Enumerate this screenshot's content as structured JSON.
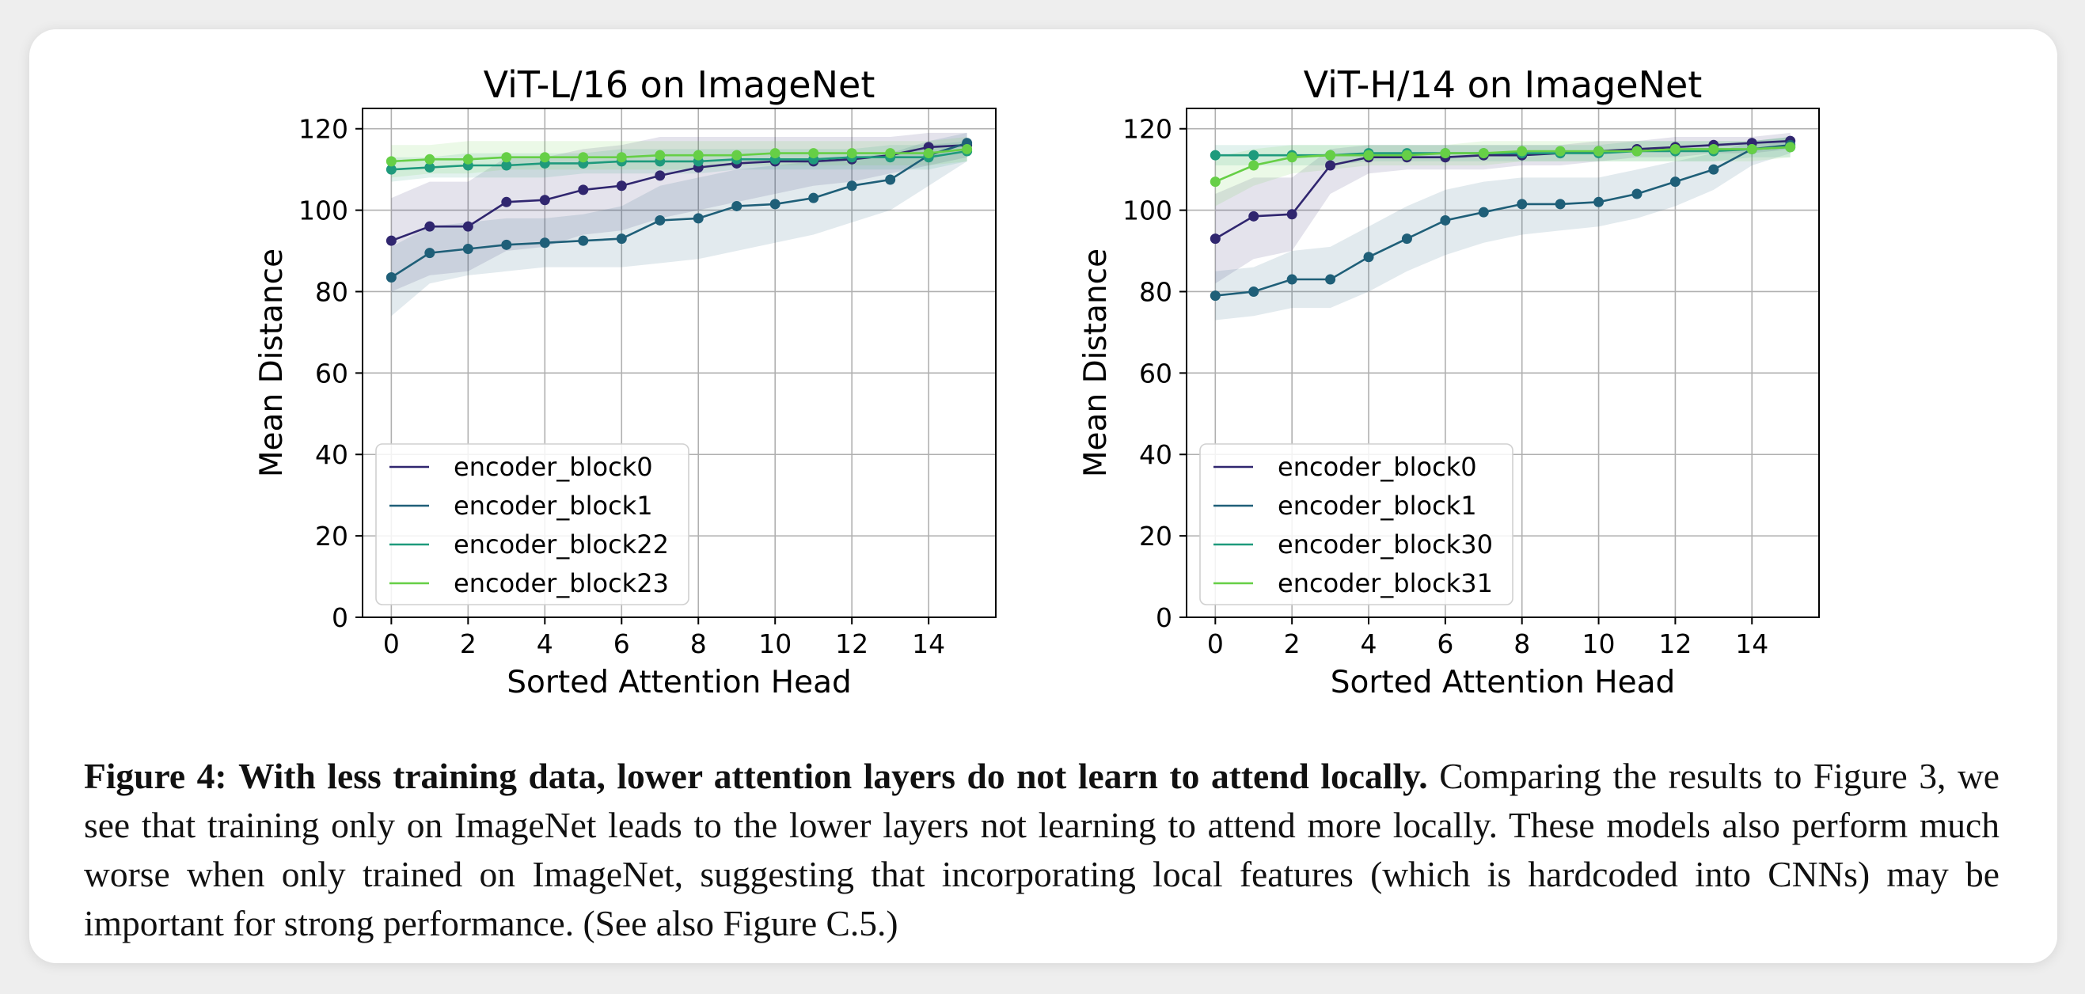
{
  "colors": {
    "series": [
      "#30266f",
      "#1f5f78",
      "#1e9a7c",
      "#66cf46"
    ]
  },
  "caption": {
    "label": "Figure 4:",
    "bold": "With less training data, lower attention layers do not learn to attend locally.",
    "body": "Comparing the results to Figure 3, we see that training only on ImageNet leads to the lower layers not learning to attend more locally. These models also perform much worse when only trained on ImageNet, suggesting that incorporating local features (which is hardcoded into CNNs) may be important for strong performance. (See also Figure C.5.)"
  },
  "chart_data": [
    {
      "type": "line",
      "title": "ViT-L/16 on ImageNet",
      "xlabel": "Sorted Attention Head",
      "ylabel": "Mean Distance",
      "xlim": [
        -0.75,
        15.75
      ],
      "ylim": [
        0,
        125
      ],
      "xticks": [
        0,
        2,
        4,
        6,
        8,
        10,
        12,
        14
      ],
      "yticks": [
        0,
        20,
        40,
        60,
        80,
        100,
        120
      ],
      "grid": true,
      "legend": "lower-left",
      "x": [
        0,
        1,
        2,
        3,
        4,
        5,
        6,
        7,
        8,
        9,
        10,
        11,
        12,
        13,
        14,
        15
      ],
      "series": [
        {
          "name": "encoder_block0",
          "values": [
            92.5,
            96,
            96,
            102,
            102.5,
            105,
            106,
            108.5,
            110.5,
            111.5,
            112,
            112,
            112.5,
            113.5,
            115.5,
            116
          ],
          "lower": [
            80,
            84,
            85,
            90,
            91,
            94,
            95,
            98,
            100,
            102,
            104,
            106,
            107,
            109,
            111,
            113
          ],
          "upper": [
            103,
            107,
            107,
            113,
            113,
            115,
            116,
            118,
            118,
            118,
            118,
            118,
            118,
            118,
            119,
            119
          ]
        },
        {
          "name": "encoder_block1",
          "values": [
            83.5,
            89.5,
            90.5,
            91.5,
            92,
            92.5,
            93,
            97.5,
            98,
            101,
            101.5,
            103,
            106,
            107.5,
            113.5,
            116.5
          ],
          "lower": [
            74,
            82,
            84,
            85,
            86,
            86,
            86,
            87,
            88,
            90,
            92,
            94,
            97,
            100,
            106,
            112
          ],
          "upper": [
            91,
            96,
            97,
            98,
            98,
            99,
            101,
            106,
            108,
            110,
            111,
            112,
            113,
            114,
            117,
            119
          ]
        },
        {
          "name": "encoder_block22",
          "values": [
            110,
            110.5,
            111,
            111,
            111.5,
            111.5,
            112,
            112,
            112,
            112.5,
            112.5,
            112.5,
            113,
            113,
            113,
            114.5
          ],
          "lower": [
            107,
            108,
            108,
            108,
            108,
            109,
            109,
            109,
            109,
            110,
            110,
            110,
            110,
            110,
            110,
            112
          ],
          "upper": [
            113,
            113,
            114,
            114,
            114,
            114,
            115,
            115,
            115,
            115,
            115,
            115,
            115,
            116,
            116,
            117
          ]
        },
        {
          "name": "encoder_block23",
          "values": [
            112,
            112.5,
            112.5,
            113,
            113,
            113,
            113,
            113.5,
            113.5,
            113.5,
            114,
            114,
            114,
            114,
            114,
            115
          ],
          "lower": [
            108,
            109,
            109,
            110,
            110,
            110,
            110,
            110,
            110,
            111,
            111,
            111,
            111,
            111,
            111,
            112
          ],
          "upper": [
            116,
            116,
            117,
            117,
            117,
            117,
            117,
            117,
            117,
            117,
            117,
            117,
            117,
            117,
            117,
            118
          ]
        }
      ]
    },
    {
      "type": "line",
      "title": "ViT-H/14 on ImageNet",
      "xlabel": "Sorted Attention Head",
      "ylabel": "Mean Distance",
      "xlim": [
        -0.75,
        15.75
      ],
      "ylim": [
        0,
        125
      ],
      "xticks": [
        0,
        2,
        4,
        6,
        8,
        10,
        12,
        14
      ],
      "yticks": [
        0,
        20,
        40,
        60,
        80,
        100,
        120
      ],
      "grid": true,
      "legend": "lower-left",
      "x": [
        0,
        1,
        2,
        3,
        4,
        5,
        6,
        7,
        8,
        9,
        10,
        11,
        12,
        13,
        14,
        15
      ],
      "series": [
        {
          "name": "encoder_block0",
          "values": [
            93,
            98.5,
            99,
            111,
            113,
            113,
            113,
            113.5,
            113.5,
            114,
            114.5,
            115,
            115.5,
            116,
            116.5,
            117
          ],
          "lower": [
            82,
            88,
            90,
            104,
            109,
            110,
            110,
            110,
            111,
            111,
            112,
            113,
            113,
            114,
            114,
            115
          ],
          "upper": [
            104,
            108,
            108,
            115,
            116,
            116,
            116,
            116,
            116,
            116,
            117,
            117,
            118,
            118,
            118,
            119
          ]
        },
        {
          "name": "encoder_block1",
          "values": [
            79,
            80,
            83,
            83,
            88.5,
            93,
            97.5,
            99.5,
            101.5,
            101.5,
            102,
            104,
            107,
            110,
            115,
            116
          ],
          "lower": [
            73,
            74,
            76,
            76,
            80,
            85,
            89,
            92,
            94,
            95,
            96,
            98,
            101,
            105,
            111,
            114
          ],
          "upper": [
            85,
            86,
            90,
            91,
            96,
            101,
            105,
            107,
            108,
            108,
            108,
            110,
            112,
            114,
            117,
            118
          ]
        },
        {
          "name": "encoder_block30",
          "values": [
            113.5,
            113.5,
            113.5,
            113.5,
            114,
            114,
            114,
            114,
            114,
            114,
            114,
            114.5,
            114.5,
            114.5,
            115,
            115.5
          ],
          "lower": [
            111,
            111,
            111,
            111,
            112,
            112,
            112,
            112,
            112,
            112,
            112,
            112,
            112,
            112,
            113,
            113
          ],
          "upper": [
            116,
            116,
            116,
            116,
            116,
            116,
            116,
            116,
            116,
            116,
            116,
            117,
            117,
            117,
            117,
            118
          ]
        },
        {
          "name": "encoder_block31",
          "values": [
            107,
            111,
            113,
            113.5,
            113.5,
            113.5,
            114,
            114,
            114.5,
            114.5,
            114.5,
            114.5,
            115,
            115,
            115,
            115.5
          ],
          "lower": [
            101,
            106,
            109,
            110,
            111,
            111,
            111,
            111,
            112,
            112,
            112,
            112,
            112,
            112,
            112,
            113
          ],
          "upper": [
            113,
            115,
            116,
            116,
            116,
            116,
            116,
            117,
            117,
            117,
            117,
            117,
            117,
            117,
            117,
            118
          ]
        }
      ]
    }
  ]
}
